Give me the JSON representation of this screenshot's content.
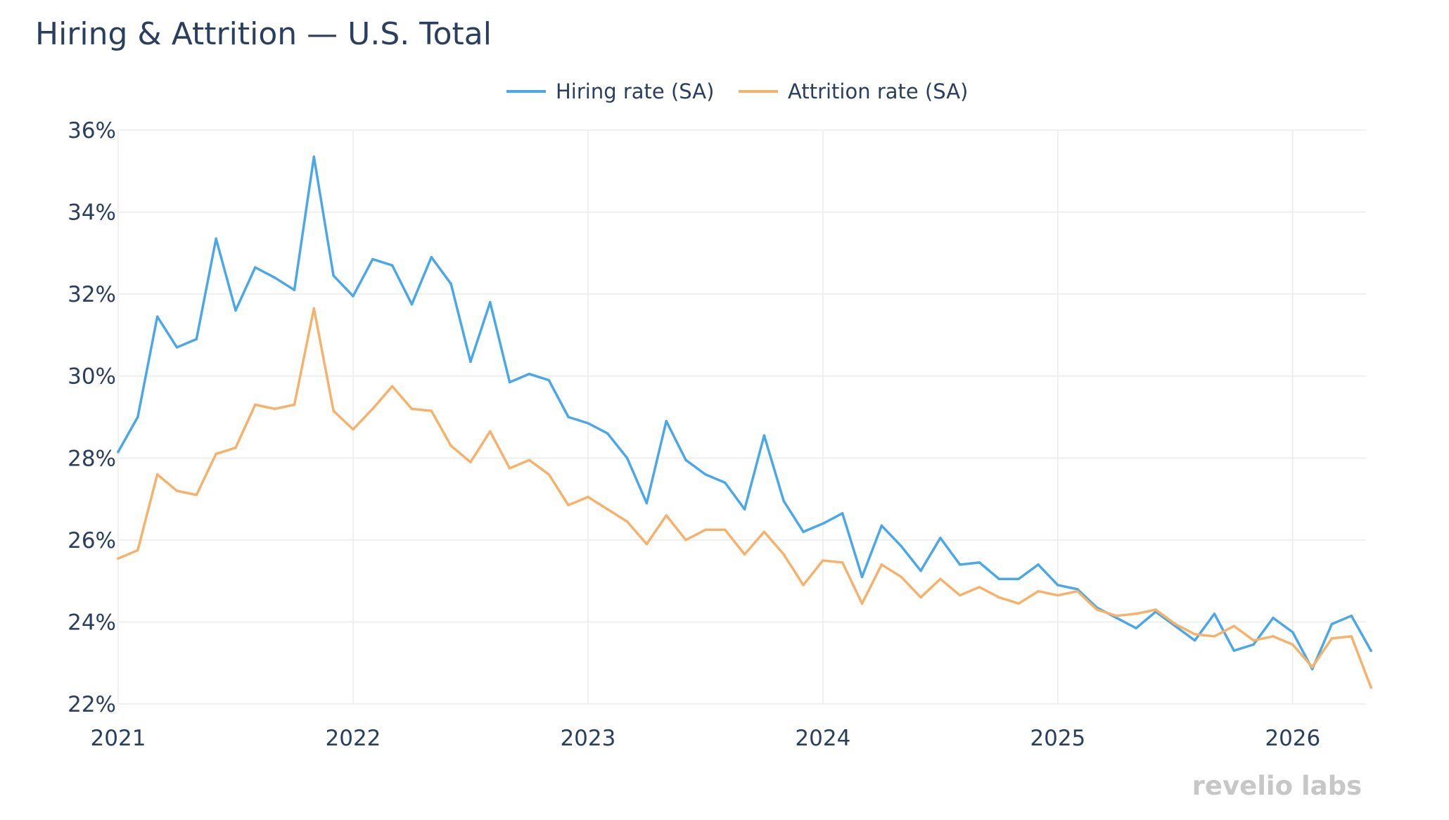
{
  "chart_data": {
    "type": "line",
    "title": "Hiring & Attrition — U.S. Total",
    "xlabel": "",
    "ylabel": "",
    "y_unit": "%",
    "ylim": [
      22,
      36
    ],
    "xlim": [
      "2021-01",
      "2026-05"
    ],
    "grid": true,
    "legend_position": "top-center",
    "x_tick_labels": [
      "2021",
      "2022",
      "2023",
      "2024",
      "2025",
      "2026"
    ],
    "y_tick_labels": [
      "22%",
      "24%",
      "26%",
      "28%",
      "30%",
      "32%",
      "34%",
      "36%"
    ],
    "x": [
      "2021-01",
      "2021-02",
      "2021-03",
      "2021-04",
      "2021-05",
      "2021-06",
      "2021-07",
      "2021-08",
      "2021-09",
      "2021-10",
      "2021-11",
      "2021-12",
      "2022-01",
      "2022-02",
      "2022-03",
      "2022-04",
      "2022-05",
      "2022-06",
      "2022-07",
      "2022-08",
      "2022-09",
      "2022-10",
      "2022-11",
      "2022-12",
      "2023-01",
      "2023-02",
      "2023-03",
      "2023-04",
      "2023-05",
      "2023-06",
      "2023-07",
      "2023-08",
      "2023-09",
      "2023-10",
      "2023-11",
      "2023-12",
      "2024-01",
      "2024-02",
      "2024-03",
      "2024-04",
      "2024-05",
      "2024-06",
      "2024-07",
      "2024-08",
      "2024-09",
      "2024-10",
      "2024-11",
      "2024-12",
      "2025-01",
      "2025-02",
      "2025-03",
      "2025-04",
      "2025-05",
      "2025-06",
      "2025-07",
      "2025-08",
      "2025-09",
      "2025-10",
      "2025-11",
      "2025-12",
      "2026-01",
      "2026-02",
      "2026-03",
      "2026-04",
      "2026-05"
    ],
    "series": [
      {
        "name": "Hiring rate (SA)",
        "color": "#4aa8e8",
        "values": [
          28.15,
          29.0,
          31.45,
          30.7,
          30.9,
          33.35,
          31.6,
          32.65,
          32.4,
          32.1,
          35.35,
          32.45,
          31.95,
          32.85,
          32.7,
          31.75,
          32.9,
          32.25,
          30.35,
          31.8,
          29.85,
          30.05,
          29.9,
          29.0,
          28.85,
          28.6,
          28.0,
          26.9,
          28.9,
          27.95,
          27.6,
          27.4,
          26.75,
          28.55,
          26.95,
          26.2,
          26.4,
          26.65,
          25.1,
          26.35,
          25.85,
          25.25,
          26.05,
          25.4,
          25.45,
          25.05,
          25.05,
          25.4,
          24.9,
          24.8,
          24.35,
          24.1,
          23.85,
          24.25,
          23.9,
          23.55,
          24.2,
          23.3,
          23.45,
          24.1,
          23.75,
          22.85,
          23.95,
          24.15,
          23.3
        ]
      },
      {
        "name": "Attrition rate (SA)",
        "color": "#f6b26b",
        "values": [
          25.55,
          25.75,
          27.6,
          27.2,
          27.1,
          28.1,
          28.25,
          29.3,
          29.2,
          29.3,
          31.65,
          29.15,
          28.7,
          29.2,
          29.75,
          29.2,
          29.15,
          28.3,
          27.9,
          28.65,
          27.75,
          27.95,
          27.6,
          26.85,
          27.05,
          26.75,
          26.45,
          25.9,
          26.6,
          26.0,
          26.25,
          26.25,
          25.65,
          26.2,
          25.65,
          24.9,
          25.5,
          25.45,
          24.45,
          25.4,
          25.1,
          24.6,
          25.05,
          24.65,
          24.85,
          24.6,
          24.45,
          24.75,
          24.65,
          24.75,
          24.3,
          24.15,
          24.2,
          24.3,
          23.95,
          23.7,
          23.65,
          23.9,
          23.55,
          23.65,
          23.45,
          22.9,
          23.6,
          23.65,
          22.4
        ]
      }
    ]
  },
  "watermark": {
    "text_left": "revelio",
    "text_right": "labs"
  }
}
